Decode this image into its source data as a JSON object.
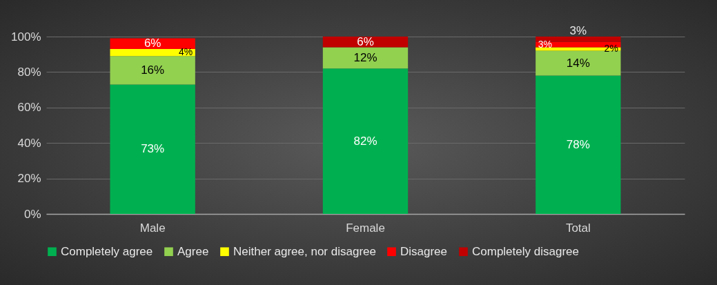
{
  "chart_data": {
    "type": "bar",
    "stacked": true,
    "categories": [
      "Male",
      "Female",
      "Total"
    ],
    "series": [
      {
        "name": "Completely agree",
        "color": "#00b050",
        "values": [
          73,
          82,
          78
        ],
        "value_labels": [
          "73%",
          "82%",
          "78%"
        ]
      },
      {
        "name": "Agree",
        "color": "#92d050",
        "values": [
          16,
          12,
          14
        ],
        "value_labels": [
          "16%",
          "12%",
          "14%"
        ]
      },
      {
        "name": "Neither agree, nor disagree",
        "color": "#ffff00",
        "values": [
          4,
          null,
          2
        ],
        "value_labels": [
          "4%",
          null,
          "2%"
        ]
      },
      {
        "name": "Disagree",
        "color": "#ff0000",
        "values": [
          6,
          null,
          3
        ],
        "value_labels": [
          "6%",
          null,
          "3%"
        ]
      },
      {
        "name": "Completely disagree",
        "color": "#c00000",
        "values": [
          null,
          6,
          3
        ],
        "value_labels": [
          null,
          "6%",
          "3%"
        ]
      }
    ],
    "ylim": [
      0,
      100
    ],
    "yticks": [
      {
        "value": 0,
        "label": "0%"
      },
      {
        "value": 20,
        "label": "20%"
      },
      {
        "value": 40,
        "label": "40%"
      },
      {
        "value": 60,
        "label": "60%"
      },
      {
        "value": 80,
        "label": "80%"
      },
      {
        "value": 100,
        "label": "100%"
      }
    ],
    "grid": "y",
    "legend": "bottom"
  }
}
